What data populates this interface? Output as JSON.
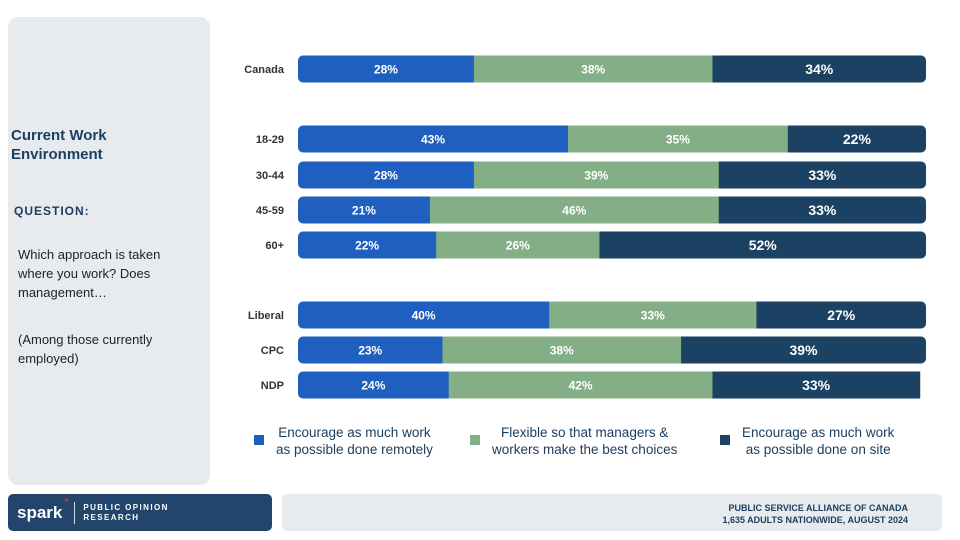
{
  "panel": {
    "title": "Current Work Environment",
    "question_label": "QUESTION:",
    "question_text": "Which approach is taken where you work? Does management…",
    "note": "(Among those currently employed)"
  },
  "colors": {
    "remote": "#1f5fbf",
    "flexible": "#84ae85",
    "onsite": "#1b4263"
  },
  "chart_data": {
    "type": "bar",
    "orientation": "horizontal",
    "stacked": true,
    "normalized": true,
    "categories": [
      "Canada",
      "18-29",
      "30-44",
      "45-59",
      "60+",
      "Liberal",
      "CPC",
      "NDP"
    ],
    "groups": [
      [
        "Canada"
      ],
      [
        "18-29",
        "30-44",
        "45-59",
        "60+"
      ],
      [
        "Liberal",
        "CPC",
        "NDP"
      ]
    ],
    "series": [
      {
        "name": "Encourage as much work as possible done remotely",
        "values": [
          28,
          43,
          28,
          21,
          22,
          40,
          23,
          24
        ]
      },
      {
        "name": "Flexible so that managers & workers make the best choices",
        "values": [
          38,
          35,
          39,
          46,
          26,
          33,
          38,
          42
        ]
      },
      {
        "name": "Encourage as much work as possible done on site",
        "values": [
          34,
          22,
          33,
          33,
          52,
          27,
          39,
          33
        ]
      }
    ],
    "value_suffix": "%",
    "xlim": [
      0,
      100
    ],
    "legend_position": "bottom"
  },
  "legend": [
    {
      "line1": "Encourage as much work",
      "line2": "as possible done remotely"
    },
    {
      "line1": "Flexible so that managers &",
      "line2": "workers make the best choices"
    },
    {
      "line1": "Encourage as much work",
      "line2": "as possible done on site"
    }
  ],
  "brand": {
    "logo": "spark",
    "star": "*",
    "line1": "PUBLIC OPINION",
    "line2": "RESEARCH"
  },
  "footer": {
    "line1": "PUBLIC SERVICE ALLIANCE OF CANADA",
    "line2": "1,635 ADULTS NATIONWIDE, AUGUST 2024"
  }
}
